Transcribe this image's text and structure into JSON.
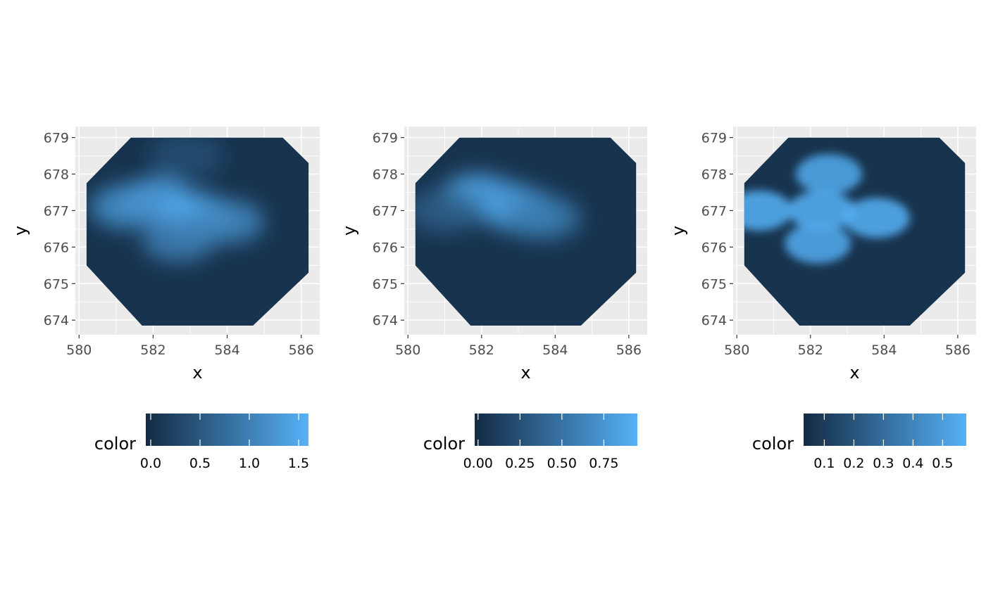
{
  "colors": {
    "panel_background": "#ebebeb",
    "grid_major": "#ffffff",
    "low": "#132b43",
    "high": "#56b1f7",
    "tick_text": "#4d4d4d"
  },
  "chart_data": [
    {
      "type": "heatmap",
      "xlabel": "x",
      "ylabel": "y",
      "xlim": [
        579.9,
        586.5
      ],
      "ylim": [
        673.6,
        679.3
      ],
      "x_ticks": [
        "580",
        "582",
        "584",
        "586"
      ],
      "y_ticks": [
        "674",
        "675",
        "676",
        "677",
        "678",
        "679"
      ],
      "grid": true,
      "legend": {
        "title": "color",
        "position": "bottom",
        "range": [
          -0.05,
          1.6
        ],
        "breaks": [
          "0.0",
          "0.5",
          "1.0",
          "1.5"
        ]
      },
      "hotspots": [
        {
          "x": 583.1,
          "y": 676.9,
          "value": 1.55
        },
        {
          "x": 582.1,
          "y": 677.3,
          "value": 1.45
        },
        {
          "x": 581.3,
          "y": 677.1,
          "value": 1.2
        },
        {
          "x": 584.0,
          "y": 676.7,
          "value": 1.1
        },
        {
          "x": 582.7,
          "y": 676.2,
          "value": 1.0
        },
        {
          "x": 582.9,
          "y": 678.5,
          "value": 0.4
        }
      ]
    },
    {
      "type": "heatmap",
      "xlabel": "x",
      "ylabel": "y",
      "xlim": [
        579.9,
        586.5
      ],
      "ylim": [
        673.6,
        679.3
      ],
      "x_ticks": [
        "580",
        "582",
        "584",
        "586"
      ],
      "y_ticks": [
        "674",
        "675",
        "676",
        "677",
        "678",
        "679"
      ],
      "grid": true,
      "legend": {
        "title": "color",
        "position": "bottom",
        "range": [
          -0.02,
          0.95
        ],
        "breaks": [
          "0.00",
          "0.25",
          "0.50",
          "0.75"
        ]
      },
      "hotspots": [
        {
          "x": 581.9,
          "y": 677.4,
          "value": 0.92
        },
        {
          "x": 583.1,
          "y": 677.0,
          "value": 0.9
        },
        {
          "x": 582.6,
          "y": 677.2,
          "value": 0.75
        },
        {
          "x": 583.7,
          "y": 676.8,
          "value": 0.55
        },
        {
          "x": 581.0,
          "y": 677.0,
          "value": 0.35
        }
      ]
    },
    {
      "type": "heatmap",
      "xlabel": "x",
      "ylabel": "y",
      "xlim": [
        579.9,
        586.5
      ],
      "ylim": [
        673.6,
        679.3
      ],
      "x_ticks": [
        "580",
        "582",
        "584",
        "586"
      ],
      "y_ticks": [
        "674",
        "675",
        "676",
        "677",
        "678",
        "679"
      ],
      "grid": true,
      "legend": {
        "title": "color",
        "position": "bottom",
        "range": [
          0.03,
          0.58
        ],
        "breaks": [
          "0.1",
          "0.2",
          "0.3",
          "0.4",
          "0.5"
        ]
      },
      "hotspots": [
        {
          "x": 582.3,
          "y": 677.0,
          "value": 0.58
        },
        {
          "x": 583.8,
          "y": 676.8,
          "value": 0.58
        },
        {
          "x": 580.6,
          "y": 677.0,
          "value": 0.58
        },
        {
          "x": 582.5,
          "y": 678.0,
          "value": 0.55
        },
        {
          "x": 582.2,
          "y": 676.1,
          "value": 0.56
        }
      ]
    }
  ]
}
